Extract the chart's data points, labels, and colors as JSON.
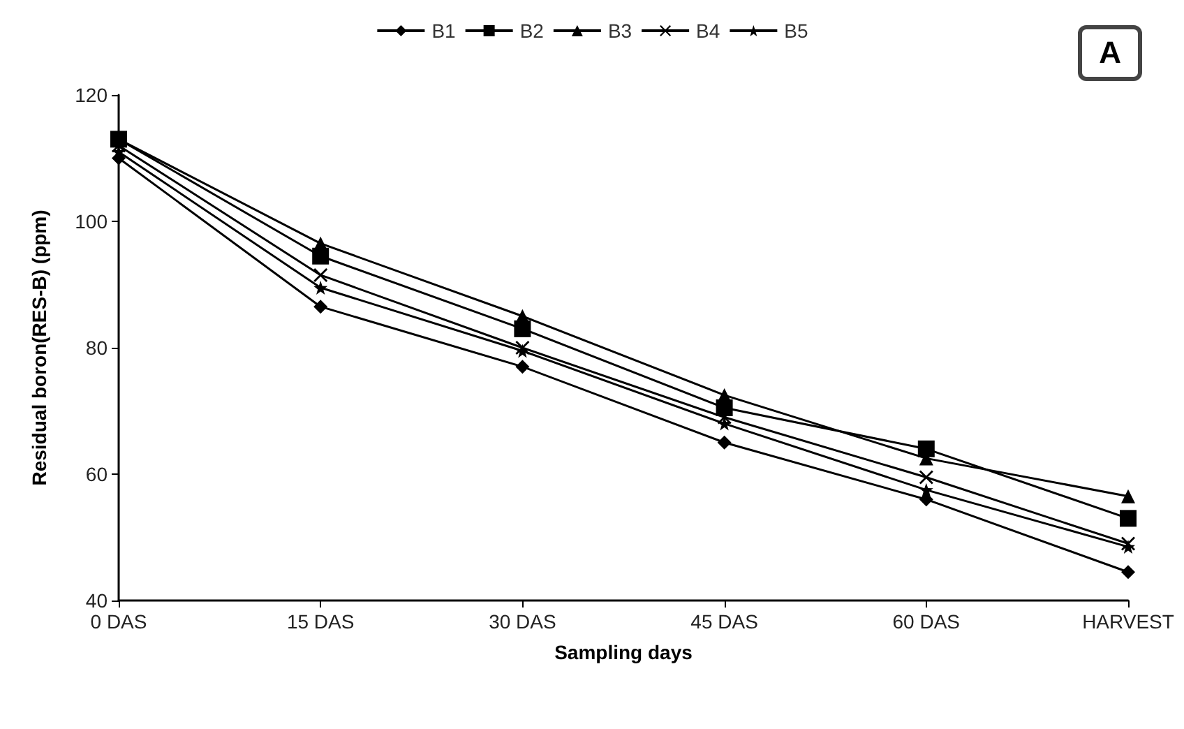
{
  "chart_data": {
    "type": "line",
    "xlabel": "Sampling days",
    "ylabel": "Residual boron(RES-B) (ppm)",
    "categories": [
      "0 DAS",
      "15 DAS",
      "30 DAS",
      "45 DAS",
      "60 DAS",
      "HARVEST"
    ],
    "series": [
      {
        "name": "B1",
        "color": "#000000",
        "marker": "diamond",
        "values": [
          110,
          86.5,
          77,
          65,
          56,
          44.5
        ]
      },
      {
        "name": "B2",
        "color": "#000000",
        "marker": "square",
        "values": [
          113,
          94.5,
          83,
          70.5,
          64,
          53
        ]
      },
      {
        "name": "B3",
        "color": "#000000",
        "marker": "triangle",
        "values": [
          113,
          96.5,
          85,
          72.5,
          62.5,
          56.5
        ]
      },
      {
        "name": "B4",
        "color": "#000000",
        "marker": "cross",
        "values": [
          112,
          91.5,
          80,
          69,
          59.5,
          49
        ]
      },
      {
        "name": "B5",
        "color": "#000000",
        "marker": "star",
        "values": [
          111,
          89.5,
          79.5,
          68,
          57.5,
          48.5
        ]
      }
    ],
    "ylim": [
      40,
      120
    ],
    "yticks": [
      40,
      60,
      80,
      100,
      120
    ],
    "grid": false,
    "legend": "top",
    "line_style": "solid",
    "annotations": [
      "A"
    ]
  }
}
